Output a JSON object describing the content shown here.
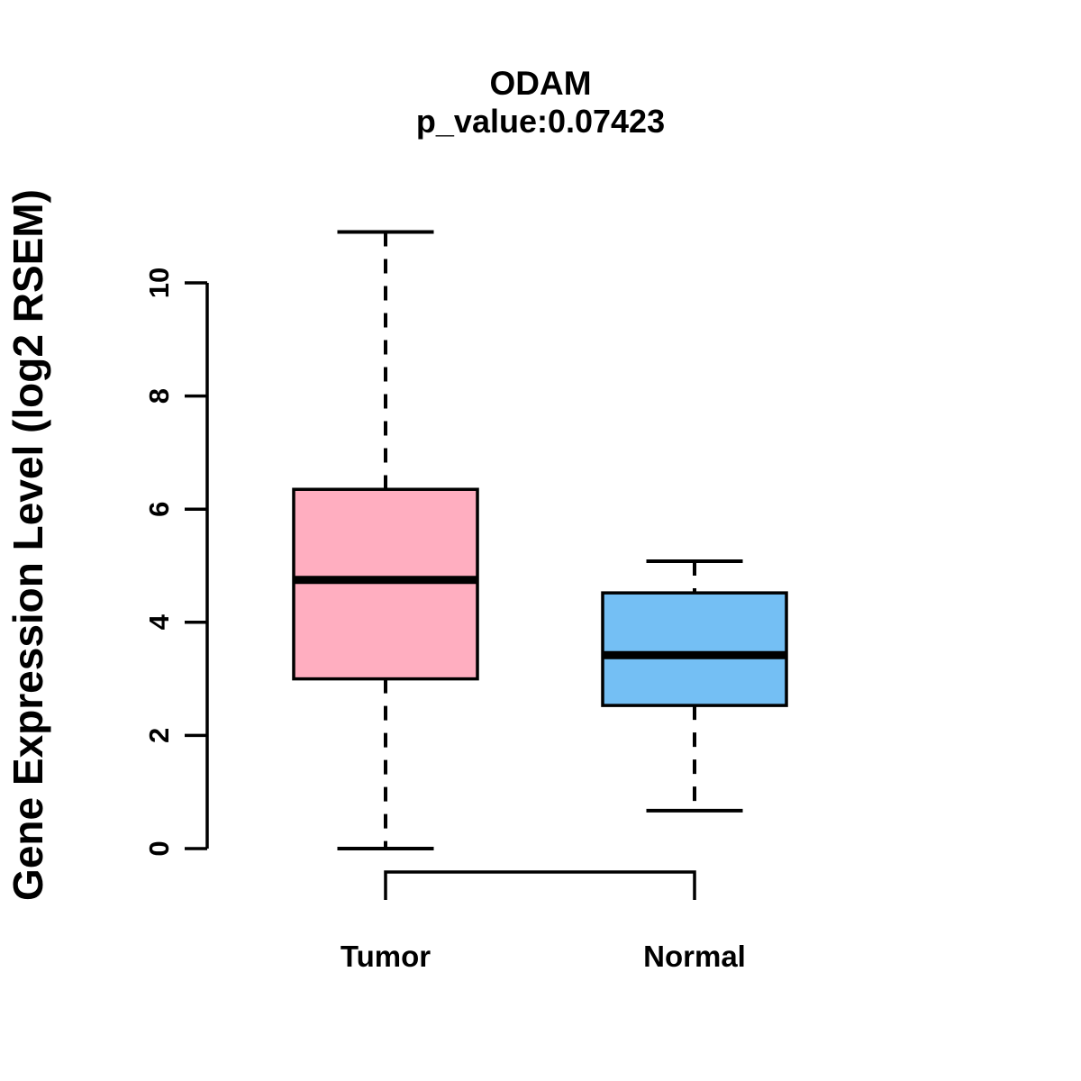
{
  "chart_data": {
    "type": "boxplot",
    "title": "ODAM",
    "subtitle": "p_value:0.07423",
    "ylabel": "Gene Expression Level (log2 RSEM)",
    "categories": [
      "Tumor",
      "Normal"
    ],
    "series": [
      {
        "name": "Tumor",
        "color": "#FFAEC0",
        "whisker_low": 0.0,
        "q1": 3.0,
        "median": 4.75,
        "q3": 6.35,
        "whisker_high": 10.9
      },
      {
        "name": "Normal",
        "color": "#74BFF4",
        "whisker_low": 0.67,
        "q1": 2.53,
        "median": 3.42,
        "q3": 4.52,
        "whisker_high": 5.08
      }
    ],
    "ylim": [
      0,
      10
    ],
    "yticks": [
      0,
      2,
      4,
      6,
      8,
      10
    ],
    "grid": false,
    "legend_position": "none",
    "stroke_color": "#000000",
    "background_color": "#ffffff"
  }
}
